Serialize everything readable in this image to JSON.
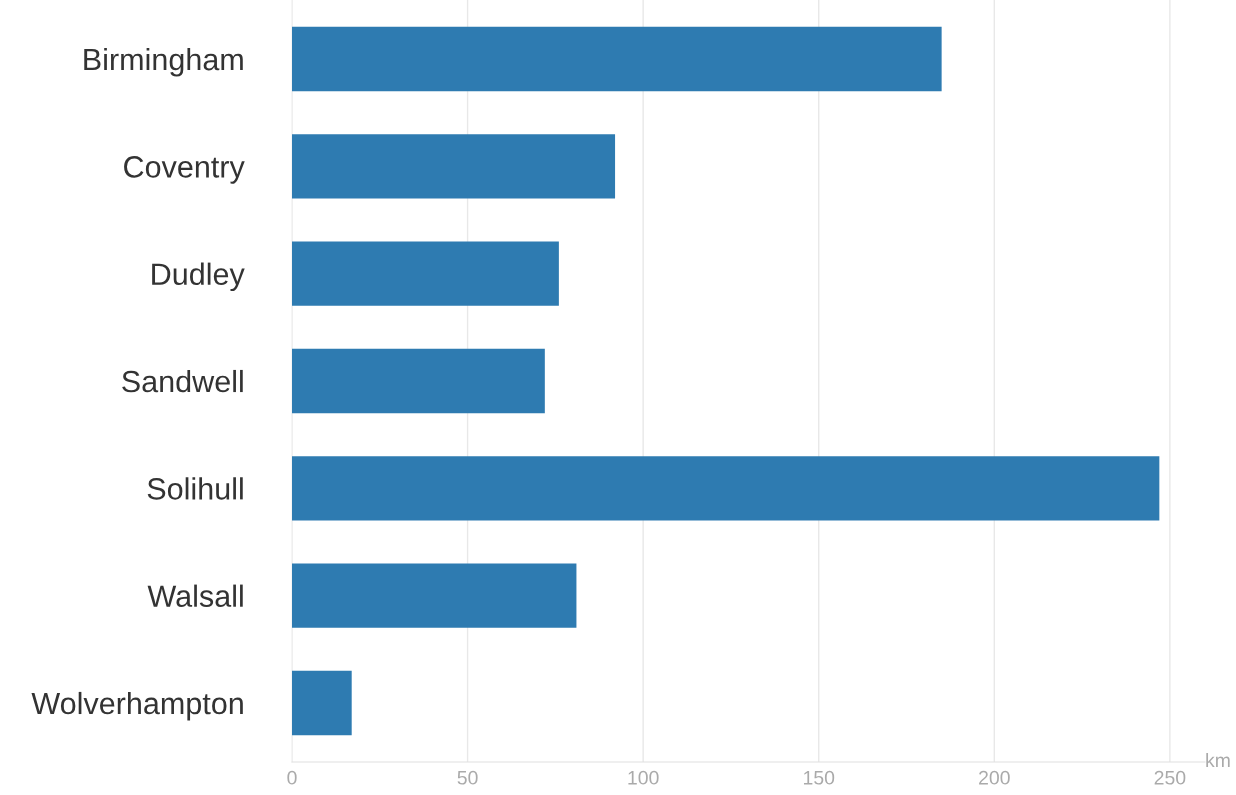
{
  "chart_data": {
    "type": "bar",
    "orientation": "horizontal",
    "categories": [
      "Birmingham",
      "Coventry",
      "Dudley",
      "Sandwell",
      "Solihull",
      "Walsall",
      "Wolverhampton"
    ],
    "values": [
      185,
      92,
      76,
      72,
      247,
      81,
      17
    ],
    "color": "#2e7bb1",
    "xlabel": "km",
    "xlim": [
      0,
      260
    ],
    "xticks": [
      0,
      50,
      100,
      150,
      200,
      250
    ],
    "grid": "x"
  }
}
